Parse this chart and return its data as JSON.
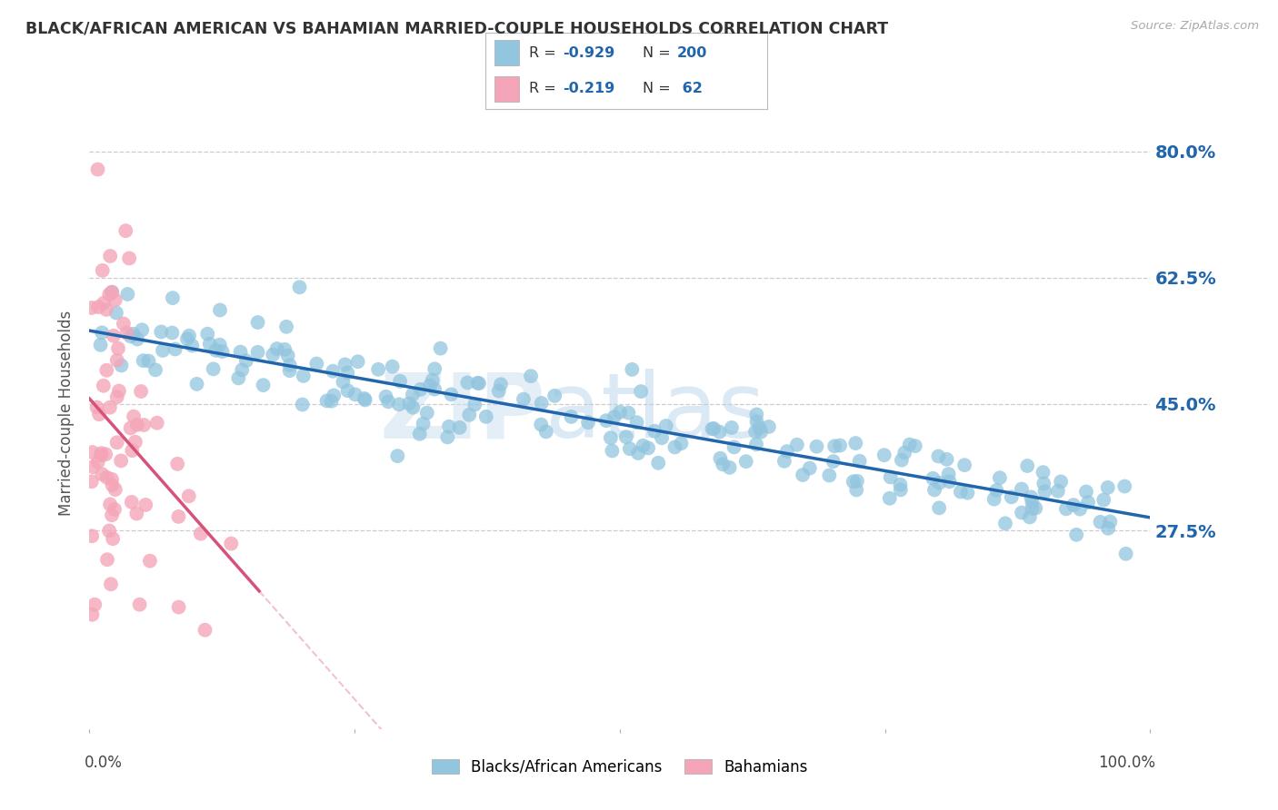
{
  "title": "BLACK/AFRICAN AMERICAN VS BAHAMIAN MARRIED-COUPLE HOUSEHOLDS CORRELATION CHART",
  "source": "Source: ZipAtlas.com",
  "ylabel": "Married-couple Households",
  "xlim": [
    0.0,
    1.0
  ],
  "ylim": [
    0.0,
    0.875
  ],
  "yticks": [
    0.275,
    0.45,
    0.625,
    0.8
  ],
  "ytick_labels": [
    "27.5%",
    "45.0%",
    "62.5%",
    "80.0%"
  ],
  "watermark_zip": "ZIP",
  "watermark_atlas": "atlas",
  "blue_color": "#92c5de",
  "pink_color": "#f4a6b8",
  "blue_line_color": "#2166ac",
  "pink_line_color": "#d6527a",
  "blue_R": -0.929,
  "blue_N": 200,
  "pink_R": -0.219,
  "pink_N": 62,
  "legend_label_blue": "Blacks/African Americans",
  "legend_label_pink": "Bahamians",
  "blue_seed": 42,
  "pink_seed": 7
}
